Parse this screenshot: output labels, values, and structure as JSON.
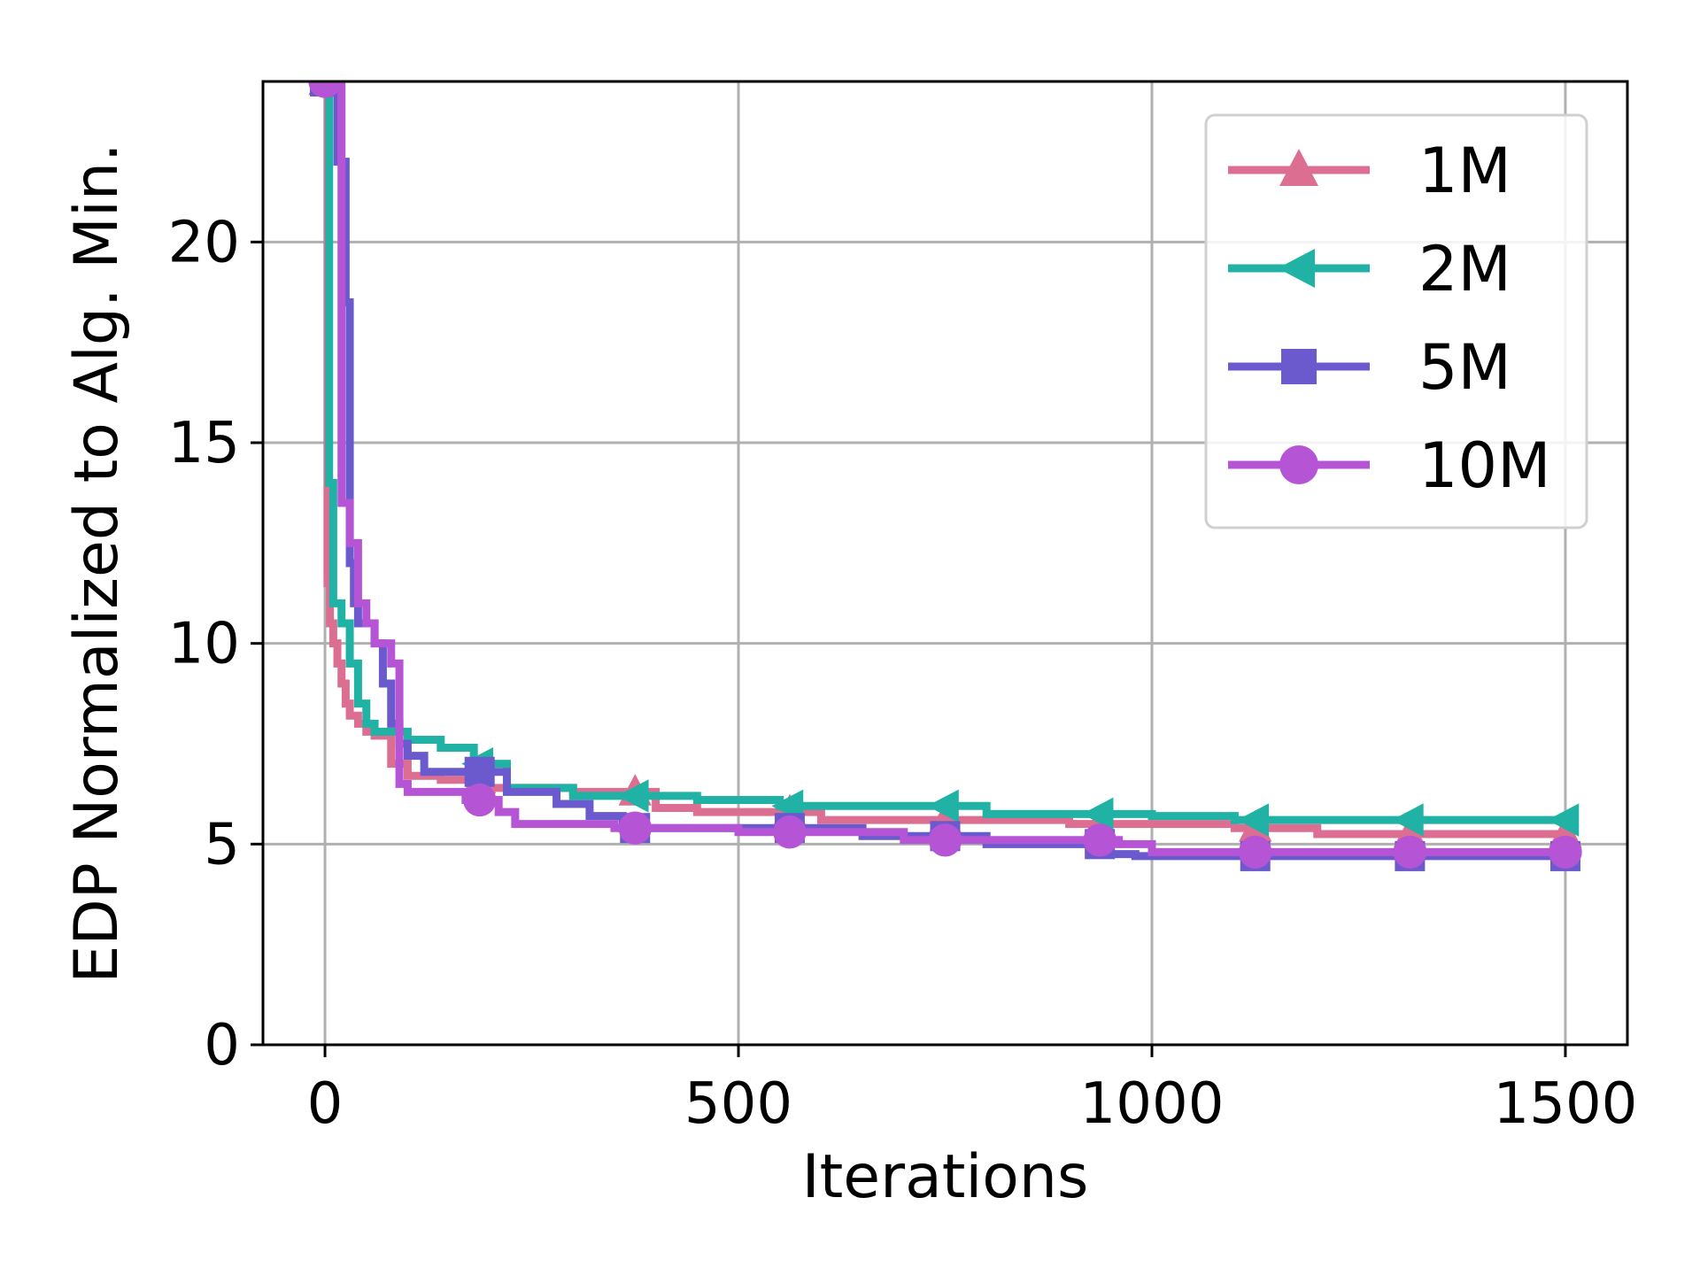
{
  "chart_data": {
    "type": "line",
    "title": "",
    "xlabel": "Iterations",
    "ylabel": "EDP Normalized to Alg. Min.",
    "xlim": [
      -75,
      1575
    ],
    "ylim": [
      0,
      24
    ],
    "xticks": [
      0,
      500,
      1000,
      1500
    ],
    "yticks": [
      0,
      5,
      10,
      15,
      20
    ],
    "grid": true,
    "legend_position": "top-right",
    "series": [
      {
        "name": "1M",
        "color": "#dc6f91",
        "marker": "triangle-up",
        "marker_x": [
          0,
          187,
          375,
          562,
          750,
          937,
          1125,
          1312,
          1500
        ],
        "x": [
          0,
          3,
          6,
          10,
          15,
          20,
          25,
          30,
          40,
          50,
          60,
          80,
          100,
          140,
          200,
          300,
          400,
          450,
          600,
          900,
          1100,
          1200,
          1500
        ],
        "y": [
          24,
          11.5,
          10.5,
          10.0,
          9.5,
          9.0,
          8.5,
          8.2,
          8.0,
          7.8,
          7.7,
          7.0,
          6.7,
          6.6,
          6.4,
          6.3,
          5.9,
          5.8,
          5.6,
          5.5,
          5.4,
          5.25,
          5.25
        ]
      },
      {
        "name": "2M",
        "color": "#20b2a4",
        "marker": "triangle-left",
        "marker_x": [
          0,
          187,
          375,
          562,
          750,
          937,
          1125,
          1312,
          1500
        ],
        "x": [
          0,
          5,
          10,
          20,
          30,
          40,
          50,
          60,
          100,
          140,
          180,
          220,
          300,
          450,
          550,
          800,
          1000,
          1100,
          1500
        ],
        "y": [
          24,
          14.0,
          11.0,
          10.5,
          9.5,
          8.5,
          8.0,
          7.8,
          7.6,
          7.4,
          7.0,
          6.4,
          6.2,
          6.1,
          5.95,
          5.75,
          5.7,
          5.6,
          5.6
        ]
      },
      {
        "name": "5M",
        "color": "#6a5acd",
        "marker": "square",
        "marker_x": [
          0,
          187,
          375,
          562,
          750,
          937,
          1125,
          1312,
          1500
        ],
        "x": [
          0,
          15,
          25,
          30,
          35,
          40,
          60,
          70,
          80,
          90,
          100,
          120,
          220,
          280,
          320,
          360,
          650,
          800,
          950,
          980,
          1500
        ],
        "y": [
          24,
          22.0,
          18.5,
          12.0,
          11.0,
          10.5,
          10.0,
          9.0,
          8.0,
          7.5,
          7.2,
          6.8,
          6.3,
          6.0,
          5.7,
          5.4,
          5.2,
          5.0,
          4.75,
          4.7,
          4.7
        ]
      },
      {
        "name": "10M",
        "color": "#b555d6",
        "marker": "circle",
        "marker_x": [
          0,
          187,
          375,
          562,
          750,
          937,
          1125,
          1312,
          1500
        ],
        "x": [
          0,
          15,
          20,
          30,
          40,
          50,
          60,
          80,
          90,
          100,
          170,
          210,
          230,
          350,
          500,
          700,
          960,
          1000,
          1500
        ],
        "y": [
          24,
          24.0,
          13.5,
          12.5,
          11.0,
          10.5,
          10.0,
          9.5,
          6.5,
          6.3,
          6.1,
          5.8,
          5.5,
          5.4,
          5.3,
          5.1,
          5.0,
          4.8,
          4.8
        ]
      }
    ]
  }
}
